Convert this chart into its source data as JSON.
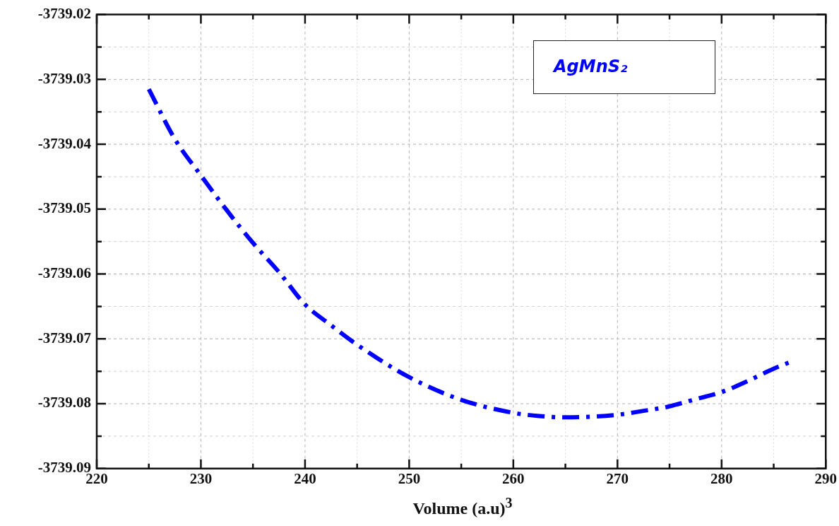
{
  "chart_data": {
    "type": "line",
    "xlabel": "Volume (a.u)$^{3}$",
    "x": [
      225,
      227.5,
      230,
      232.5,
      235,
      237.5,
      240,
      242.5,
      245,
      250,
      255,
      260,
      262.5,
      265,
      267.5,
      270,
      272.5,
      275,
      277.5,
      280,
      282.5,
      285,
      286.7
    ],
    "series": [
      {
        "name": "AgMnS₂",
        "color": "#0000ff",
        "values": [
          -3739.0315,
          -3739.0392,
          -3739.0448,
          -3739.0502,
          -3739.0552,
          -3739.0597,
          -3739.0647,
          -3739.0679,
          -3739.0709,
          -3739.0759,
          -3739.0794,
          -3739.0814,
          -3739.0819,
          -3739.0821,
          -3739.082,
          -3739.0817,
          -3739.0811,
          -3739.0804,
          -3739.0793,
          -3739.0782,
          -3739.0765,
          -3739.0746,
          -3739.0735
        ]
      }
    ],
    "xlim": [
      220,
      290
    ],
    "xticks": [
      220,
      {
        "value": 225,
        "label": null
      },
      230,
      {
        "value": 235,
        "label": null
      },
      240,
      {
        "value": 245,
        "label": null
      },
      250,
      {
        "value": 255,
        "label": null
      },
      260,
      {
        "value": 265,
        "label": null
      },
      270,
      {
        "value": 275,
        "label": null
      },
      280,
      {
        "value": 285,
        "label": null
      },
      290
    ],
    "ylim": [
      -3739.09,
      -3739.02
    ],
    "yticks": [
      -3739.09,
      {
        "value": -3739.085,
        "label": null
      },
      -3739.08,
      {
        "value": -3739.075,
        "label": null
      },
      -3739.07,
      {
        "value": -3739.065,
        "label": null
      },
      -3739.06,
      {
        "value": -3739.055,
        "label": null
      },
      -3739.05,
      {
        "value": -3739.045,
        "label": null
      },
      -3739.04,
      {
        "value": -3739.035,
        "label": null
      },
      -3739.03,
      {
        "value": -3739.025,
        "label": null
      },
      -3739.02
    ],
    "grid": true,
    "legend": "top right",
    "marker": "none",
    "line_style": "dashed"
  }
}
